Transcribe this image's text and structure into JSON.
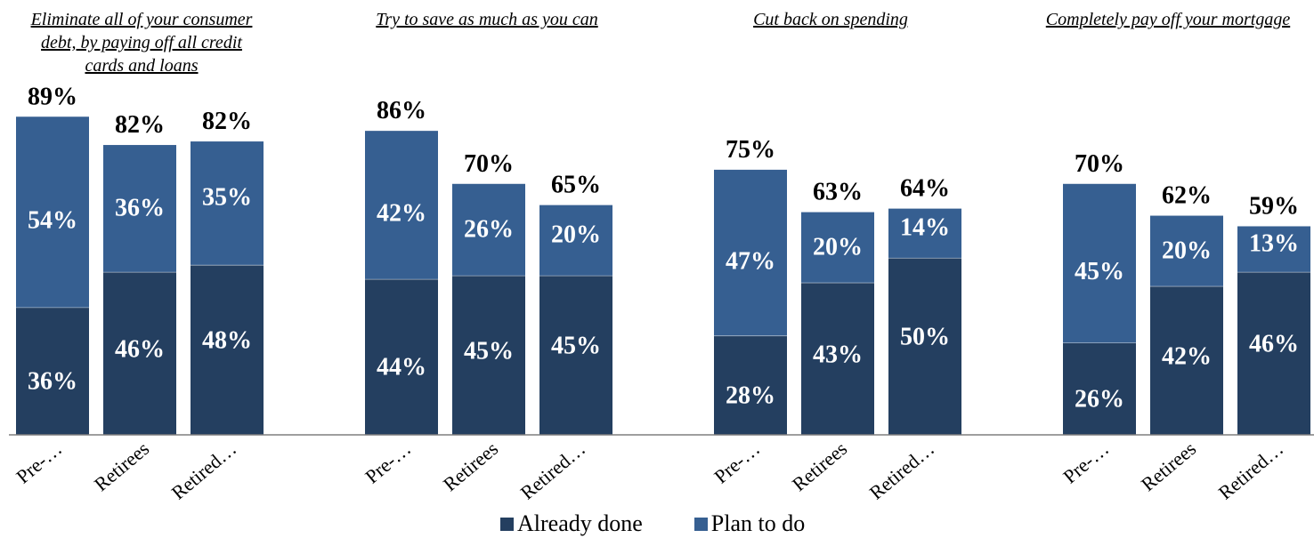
{
  "chart_data": {
    "type": "bar",
    "stacked": true,
    "ylim": [
      0,
      100
    ],
    "grid": false,
    "legend": {
      "position": "bottom",
      "entries": [
        "Already done",
        "Plan to do"
      ]
    },
    "colors": {
      "already_done": "#243F60",
      "plan_to_do": "#365F91",
      "axis": "#7f7f7f"
    },
    "groups": [
      {
        "title": "Eliminate all of your consumer debt, by paying off all credit cards and loans",
        "title_lines": [
          "Eliminate all of your consumer",
          "debt, by paying off all credit",
          "cards and loans"
        ],
        "categories": [
          "Pre-…",
          "Retirees",
          "Retired…"
        ],
        "series": [
          {
            "name": "Already done",
            "values": [
              36,
              46,
              48
            ]
          },
          {
            "name": "Plan to do",
            "values": [
              54,
              36,
              35
            ]
          }
        ],
        "totals": [
          89,
          82,
          82
        ]
      },
      {
        "title": "Try to save as much as you can",
        "title_lines": [
          "Try to save as much as you can"
        ],
        "categories": [
          "Pre-…",
          "Retirees",
          "Retired…"
        ],
        "series": [
          {
            "name": "Already done",
            "values": [
              44,
              45,
              45
            ]
          },
          {
            "name": "Plan to do",
            "values": [
              42,
              26,
              20
            ]
          }
        ],
        "totals": [
          86,
          70,
          65
        ]
      },
      {
        "title": "Cut back on spending",
        "title_lines": [
          "Cut back on spending"
        ],
        "categories": [
          "Pre-…",
          "Retirees",
          "Retired…"
        ],
        "series": [
          {
            "name": "Already done",
            "values": [
              28,
              43,
              50
            ]
          },
          {
            "name": "Plan to do",
            "values": [
              47,
              20,
              14
            ]
          }
        ],
        "totals": [
          75,
          63,
          64
        ]
      },
      {
        "title": "Completely pay off your mortgage",
        "title_lines": [
          "Completely pay off your mortgage"
        ],
        "categories": [
          "Pre-…",
          "Retirees",
          "Retired…"
        ],
        "series": [
          {
            "name": "Already done",
            "values": [
              26,
              42,
              46
            ]
          },
          {
            "name": "Plan to do",
            "values": [
              45,
              20,
              13
            ]
          }
        ],
        "totals": [
          70,
          62,
          59
        ]
      }
    ]
  }
}
